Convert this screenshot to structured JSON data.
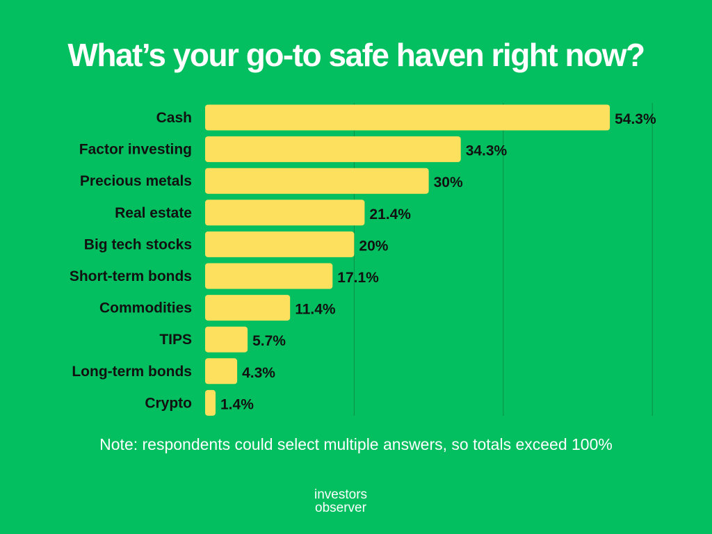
{
  "title": "What’s your go-to safe haven right now?",
  "note": "Note: respondents could select multiple answers, so totals exceed 100%",
  "logo": {
    "line1": "investors",
    "line2": "observer"
  },
  "colors": {
    "background": "#03bf5f",
    "bar": "#fde05e",
    "text": "#111111",
    "grid": "#0a8f48"
  },
  "chart_data": {
    "type": "bar",
    "orientation": "horizontal",
    "title": "What’s your go-to safe haven right now?",
    "categories": [
      "Cash",
      "Factor investing",
      "Precious metals",
      "Real estate",
      "Big tech stocks",
      "Short-term bonds",
      "Commodities",
      "TIPS",
      "Long-term bonds",
      "Crypto"
    ],
    "values": [
      54.3,
      34.3,
      30,
      21.4,
      20,
      17.1,
      11.4,
      5.7,
      4.3,
      1.4
    ],
    "value_labels": [
      "54.3%",
      "34.3%",
      "30%",
      "21.4%",
      "20%",
      "17.1%",
      "11.4%",
      "5.7%",
      "4.3%",
      "1.4%"
    ],
    "unit": "%",
    "xlim": [
      0,
      60
    ],
    "grid": true,
    "legend": "none"
  }
}
